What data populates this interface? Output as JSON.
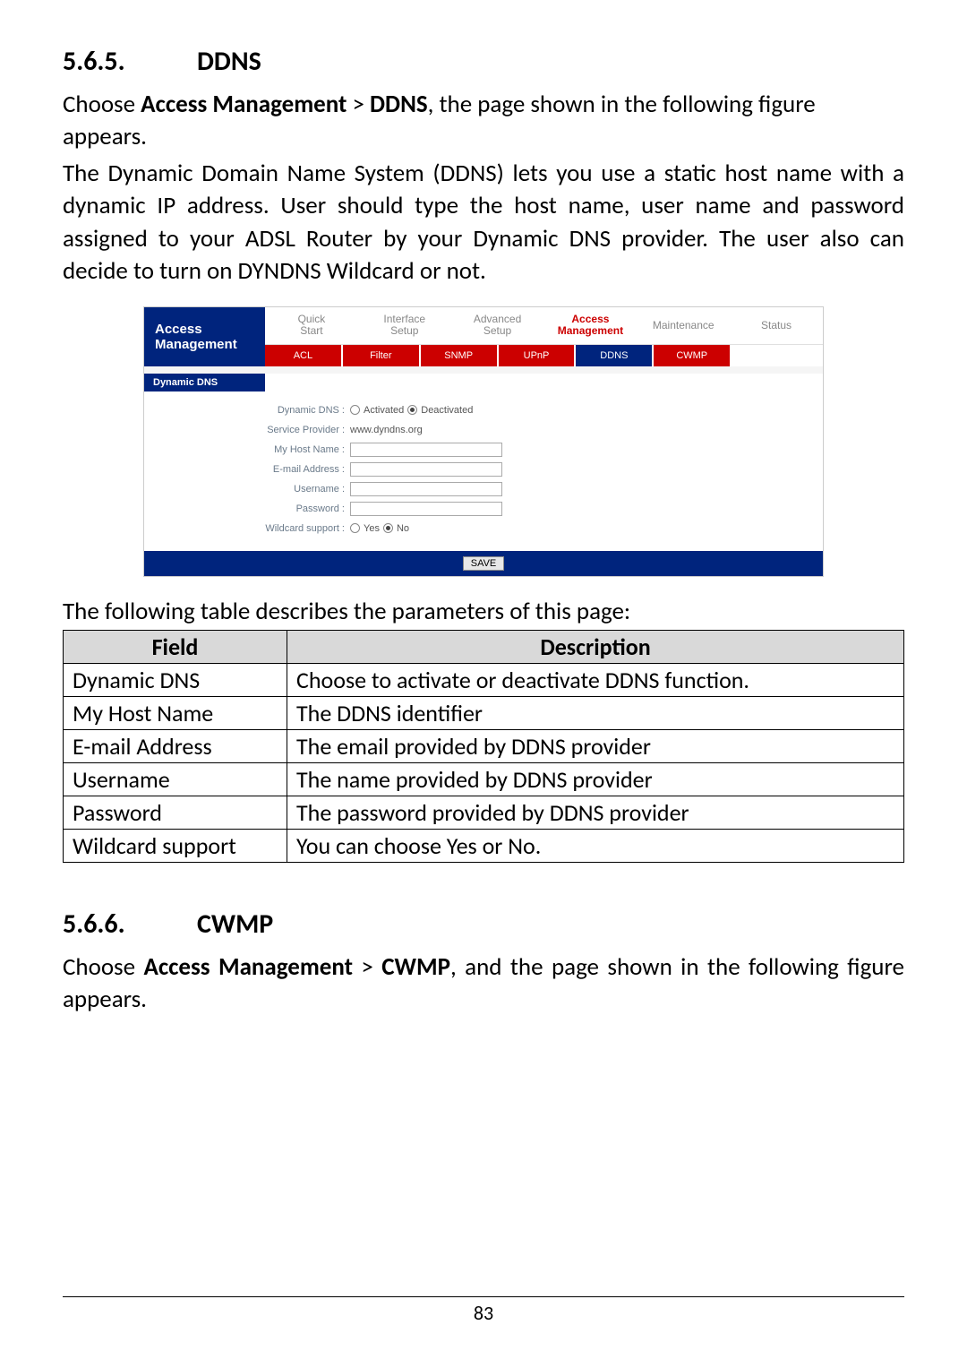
{
  "section1": {
    "number": "5.6.5.",
    "title": "DDNS",
    "intro_parts": [
      "Choose ",
      "Access Management",
      " > ",
      "DDNS",
      ", the page shown in the following figure appears."
    ],
    "desc": "The Dynamic Domain Name System (DDNS) lets you use a static host name with a dynamic IP address. User should type the host name, user name and password assigned to your ADSL Router by your Dynamic DNS provider. The user also can decide to turn on DYNDNS Wildcard or not."
  },
  "screenshot": {
    "left_title_l1": "Access",
    "left_title_l2": "Management",
    "tabs_row1": [
      "Quick Start",
      "Interface Setup",
      "Advanced Setup",
      "Access Management",
      "Maintenance",
      "Status"
    ],
    "tabs_row1_active_index": 3,
    "tabs_row2": [
      "ACL",
      "Filter",
      "SNMP",
      "UPnP",
      "DDNS",
      "CWMP"
    ],
    "tabs_row2_sel_index": 4,
    "section_bar": "Dynamic DNS",
    "rows": [
      {
        "label": "Dynamic DNS :",
        "type": "radio2",
        "opt1": "Activated",
        "opt2": "Deactivated",
        "checked": 2
      },
      {
        "label": "Service Provider :",
        "type": "static",
        "value": "www.dyndns.org"
      },
      {
        "label": "My Host Name :",
        "type": "text"
      },
      {
        "label": "E-mail Address :",
        "type": "text"
      },
      {
        "label": "Username :",
        "type": "text"
      },
      {
        "label": "Password :",
        "type": "text"
      },
      {
        "label": "Wildcard support :",
        "type": "radio2",
        "opt1": "Yes",
        "opt2": "No",
        "checked": 2
      }
    ],
    "save": "SAVE"
  },
  "table_caption": "The following table describes the parameters of this page:",
  "param_table": {
    "headers": [
      "Field",
      "Description"
    ],
    "rows": [
      [
        "Dynamic DNS",
        "Choose to activate or deactivate DDNS function."
      ],
      [
        "My Host Name",
        "The DDNS identifier"
      ],
      [
        "E-mail Address",
        "The email provided by DDNS provider"
      ],
      [
        "Username",
        "The name provided by DDNS provider"
      ],
      [
        "Password",
        "The password provided by DDNS provider"
      ],
      [
        "Wildcard support",
        "You can choose Yes or No."
      ]
    ]
  },
  "section2": {
    "number": "5.6.6.",
    "title": "CWMP",
    "intro_parts": [
      "Choose ",
      "Access Management",
      " > ",
      "CWMP",
      ", and the page shown in the following figure appears."
    ]
  },
  "page_number": "83"
}
